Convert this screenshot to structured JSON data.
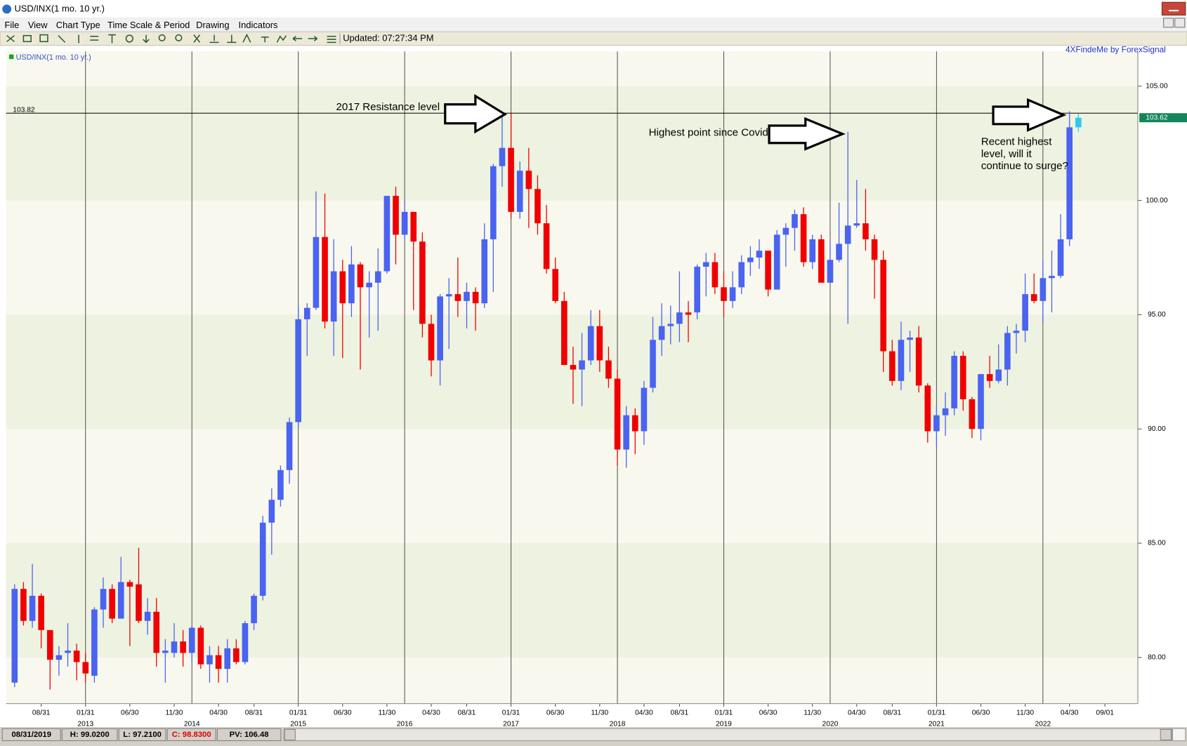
{
  "window": {
    "title": "USD/INX(1 mo. 10 yr.)",
    "menu": [
      "File",
      "View",
      "Chart Type",
      "Time Scale & Period",
      "Drawing",
      "Indicators"
    ],
    "updated": "Updated: 07:27:34 PM"
  },
  "status_bar": [
    "08/31/2019",
    "H: 99.0200",
    "L: 97.2100",
    "C: 98.8300",
    "PV: 106.48"
  ],
  "chart_data": {
    "type": "candlestick",
    "title": "USD/INX(1 mo. 10 yr.)",
    "source": "4XFindeMe by ForexSignal",
    "up_color": "#4a63f0",
    "down_color": "#f00000",
    "current_color": "#30c8f0",
    "ylim": [
      77.98,
      106.52
    ],
    "yticks": [
      {
        "value": 80,
        "label": "80.00"
      },
      {
        "value": 85,
        "label": "85.00"
      },
      {
        "value": 90,
        "label": "90.00"
      },
      {
        "value": 95,
        "label": "95.00"
      },
      {
        "value": 100,
        "label": "100.00"
      },
      {
        "value": 105,
        "label": "105.00"
      }
    ],
    "resistance_level": 103.82,
    "last_price": 103.62,
    "annotations": {
      "resistance": "2017 Resistance level",
      "covid": "Highest point since Covid",
      "recent": [
        "Recent highest",
        "level, will it",
        "continue to surge?"
      ]
    },
    "categories": [
      null,
      null,
      null,
      "08/31",
      null,
      null,
      null,
      null,
      "01/31",
      null,
      null,
      null,
      null,
      "06/30",
      null,
      null,
      null,
      null,
      "11/30",
      null,
      null,
      null,
      null,
      "04/30",
      null,
      null,
      null,
      "08/31",
      null,
      null,
      null,
      null,
      "01/31",
      null,
      null,
      null,
      null,
      "06/30",
      null,
      null,
      null,
      null,
      "11/30",
      null,
      null,
      null,
      null,
      "04/30",
      null,
      null,
      null,
      "08/31",
      null,
      null,
      null,
      null,
      "01/31",
      null,
      null,
      null,
      null,
      "06/30",
      null,
      null,
      null,
      null,
      "11/30",
      null,
      null,
      null,
      null,
      "04/30",
      null,
      null,
      null,
      "08/31",
      null,
      null,
      null,
      null,
      "01/31",
      null,
      null,
      null,
      null,
      "06/30",
      null,
      null,
      null,
      null,
      "11/30",
      null,
      null,
      null,
      null,
      "04/30",
      null,
      null,
      null,
      "08/31",
      null,
      null,
      null,
      null,
      "01/31",
      null,
      null,
      null,
      null,
      "06/30",
      null,
      null,
      null,
      null,
      "11/30",
      null,
      null,
      null,
      null,
      "04/30",
      null,
      null,
      null,
      "09/01"
    ],
    "years": [
      null,
      null,
      null,
      null,
      null,
      null,
      null,
      null,
      "2013",
      null,
      null,
      null,
      null,
      null,
      null,
      null,
      null,
      null,
      null,
      null,
      "2014",
      null,
      null,
      null,
      null,
      null,
      null,
      null,
      null,
      null,
      null,
      null,
      "2015",
      null,
      null,
      null,
      null,
      null,
      null,
      null,
      null,
      null,
      null,
      null,
      "2016",
      null,
      null,
      null,
      null,
      null,
      null,
      null,
      null,
      null,
      null,
      null,
      "2017",
      null,
      null,
      null,
      null,
      null,
      null,
      null,
      null,
      null,
      null,
      null,
      "2018",
      null,
      null,
      null,
      null,
      null,
      null,
      null,
      null,
      null,
      null,
      null,
      "2019",
      null,
      null,
      null,
      null,
      null,
      null,
      null,
      null,
      null,
      null,
      null,
      "2020",
      null,
      null,
      null,
      null,
      null,
      null,
      null,
      null,
      null,
      null,
      null,
      "2021",
      null,
      null,
      null,
      null,
      null,
      null,
      null,
      null,
      null,
      null,
      null,
      "2022",
      null,
      null,
      null,
      null,
      null,
      null,
      null
    ],
    "open": [
      78.9,
      83.0,
      81.6,
      82.7,
      81.2,
      79.9,
      80.2,
      80.3,
      79.8,
      79.2,
      82.1,
      83.0,
      81.7,
      83.3,
      83.2,
      81.6,
      82.0,
      80.2,
      80.2,
      80.7,
      80.2,
      81.3,
      79.7,
      80.1,
      79.5,
      80.4,
      79.8,
      81.5,
      82.7,
      85.9,
      86.9,
      88.2,
      90.3,
      94.8,
      95.3,
      98.4,
      94.7,
      96.9,
      95.5,
      97.2,
      96.2,
      96.4,
      96.9,
      100.2,
      98.5,
      99.5,
      98.2,
      94.6,
      93.0,
      95.8,
      95.9,
      95.6,
      96.0,
      95.5,
      98.3,
      101.5,
      102.3,
      99.5,
      101.3,
      100.5,
      99.0,
      97.0,
      95.6,
      92.8,
      92.6,
      93.0,
      94.5,
      93.0,
      92.2,
      89.1,
      90.6,
      89.9,
      91.8,
      93.9,
      94.5,
      94.6,
      95.1,
      95.1,
      97.1,
      97.3,
      96.2,
      95.6,
      96.2,
      97.3,
      97.5,
      97.8,
      96.1,
      98.5,
      98.8,
      99.4,
      97.3,
      98.3,
      96.4,
      97.4,
      98.1,
      98.9,
      99.0,
      98.3,
      97.4,
      93.4,
      92.1,
      93.9,
      94.0,
      91.9,
      89.9,
      90.6,
      90.9,
      93.2,
      91.3,
      90.0,
      92.4,
      92.1,
      92.6,
      94.2,
      94.3,
      95.9,
      95.6,
      96.6,
      96.7,
      98.3,
      103.2,
      null,
      null,
      null
    ],
    "high": [
      83.2,
      83.3,
      84.1,
      82.8,
      81.2,
      80.5,
      81.5,
      80.6,
      80.2,
      82.2,
      83.5,
      83.2,
      84.4,
      83.4,
      84.8,
      82.6,
      82.6,
      80.8,
      81.5,
      81.2,
      81.4,
      81.4,
      80.5,
      80.5,
      80.8,
      80.8,
      81.6,
      82.8,
      86.2,
      87.4,
      88.4,
      90.5,
      95.4,
      95.5,
      100.4,
      100.3,
      98.3,
      97.4,
      98.0,
      97.3,
      96.9,
      97.9,
      100.2,
      100.6,
      100.0,
      99.5,
      98.6,
      95.0,
      95.9,
      96.6,
      97.5,
      96.4,
      96.2,
      99.0,
      101.6,
      103.8,
      103.8,
      101.7,
      102.3,
      101.1,
      99.8,
      97.5,
      96.0,
      93.6,
      94.2,
      95.2,
      95.2,
      93.6,
      92.6,
      91.0,
      90.9,
      92.1,
      94.9,
      95.5,
      95.4,
      96.9,
      95.6,
      97.2,
      97.7,
      97.7,
      96.9,
      96.9,
      97.6,
      98.0,
      98.3,
      97.8,
      98.7,
      99.0,
      99.6,
      99.7,
      98.5,
      98.5,
      98.2,
      99.9,
      103.0,
      100.9,
      100.5,
      98.5,
      97.8,
      93.9,
      94.7,
      94.3,
      94.5,
      92.0,
      91.0,
      91.6,
      93.4,
      93.4,
      91.4,
      92.4,
      93.2,
      93.7,
      94.5,
      94.6,
      96.8,
      96.8,
      97.4,
      97.8,
      99.4,
      103.9,
      103.8,
      null,
      null,
      null
    ],
    "low": [
      78.7,
      81.4,
      81.3,
      80.4,
      78.6,
      79.2,
      79.6,
      79.0,
      78.9,
      78.9,
      81.3,
      81.5,
      81.7,
      80.5,
      81.5,
      81.0,
      79.6,
      78.9,
      80.0,
      79.6,
      79.8,
      79.5,
      78.9,
      78.9,
      78.9,
      79.7,
      79.7,
      81.2,
      82.5,
      84.5,
      86.6,
      87.6,
      90.1,
      93.2,
      95.2,
      94.4,
      93.2,
      93.1,
      94.9,
      92.6,
      94.0,
      94.3,
      96.8,
      97.2,
      98.3,
      95.2,
      94.0,
      92.3,
      91.9,
      93.5,
      94.9,
      94.4,
      94.3,
      95.3,
      96.0,
      100.6,
      99.2,
      99.2,
      98.8,
      98.5,
      96.8,
      95.5,
      92.8,
      91.1,
      91.0,
      92.8,
      92.5,
      91.8,
      88.4,
      88.3,
      88.9,
      89.3,
      91.6,
      93.2,
      93.7,
      93.8,
      93.8,
      94.8,
      95.8,
      95.9,
      94.9,
      95.3,
      95.9,
      96.7,
      97.0,
      95.8,
      96.1,
      97.1,
      97.8,
      97.1,
      97.0,
      96.4,
      96.4,
      97.3,
      94.6,
      98.8,
      97.8,
      95.7,
      92.5,
      91.9,
      91.7,
      92.5,
      91.6,
      89.4,
      89.2,
      89.7,
      90.6,
      90.8,
      89.6,
      89.5,
      91.8,
      92.0,
      91.9,
      93.3,
      93.8,
      95.5,
      94.6,
      95.1,
      96.6,
      98.0,
      103.0,
      null,
      null,
      null
    ],
    "close": [
      83.0,
      81.6,
      82.7,
      81.2,
      79.9,
      80.1,
      80.3,
      79.8,
      79.3,
      82.1,
      83.0,
      81.7,
      83.3,
      83.1,
      81.6,
      82.0,
      80.2,
      80.3,
      80.7,
      80.2,
      81.3,
      79.7,
      80.1,
      79.5,
      80.4,
      79.8,
      81.5,
      82.7,
      85.9,
      86.9,
      88.2,
      90.3,
      94.8,
      95.3,
      98.4,
      94.7,
      96.9,
      95.5,
      97.2,
      96.2,
      96.4,
      96.9,
      100.2,
      98.5,
      99.5,
      98.2,
      94.6,
      93.0,
      95.8,
      95.9,
      95.6,
      96.0,
      95.5,
      98.3,
      101.5,
      102.3,
      99.5,
      101.3,
      100.5,
      99.0,
      97.0,
      95.6,
      92.8,
      92.6,
      93.0,
      94.5,
      93.0,
      92.2,
      89.1,
      90.6,
      89.9,
      91.8,
      93.9,
      94.5,
      94.6,
      95.1,
      95.0,
      97.1,
      97.3,
      96.2,
      95.6,
      96.2,
      97.3,
      97.5,
      97.8,
      96.1,
      98.5,
      98.8,
      99.4,
      97.3,
      98.3,
      96.4,
      97.4,
      98.1,
      98.9,
      99.0,
      98.3,
      97.4,
      93.4,
      92.1,
      93.9,
      94.0,
      91.9,
      89.9,
      90.6,
      90.9,
      93.2,
      91.3,
      90.0,
      92.4,
      92.1,
      92.6,
      94.2,
      94.3,
      95.9,
      95.6,
      96.6,
      96.7,
      98.3,
      103.2,
      103.62,
      null,
      null,
      null
    ]
  }
}
